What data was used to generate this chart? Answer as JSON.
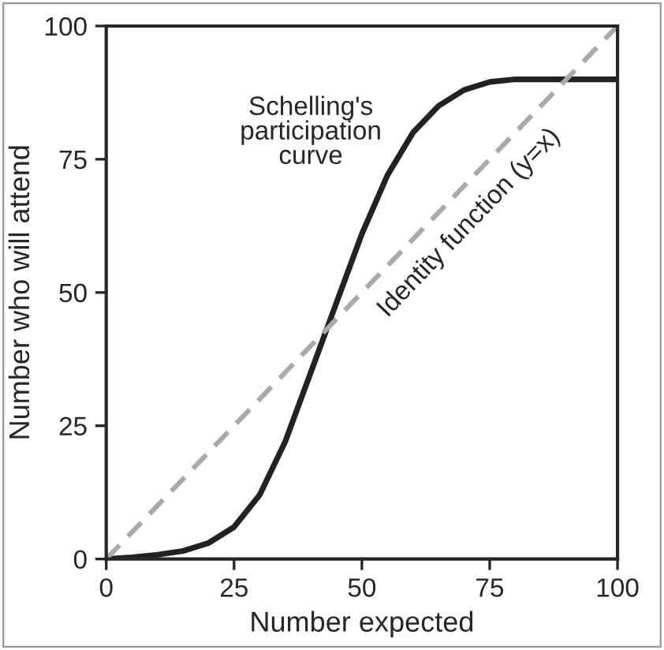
{
  "chart_data": {
    "type": "line",
    "xlabel": "Number expected",
    "ylabel": "Number who will attend",
    "xlim": [
      0,
      100
    ],
    "ylim": [
      0,
      100
    ],
    "xticks": [
      0,
      25,
      50,
      75,
      100
    ],
    "yticks": [
      0,
      25,
      50,
      75,
      100
    ],
    "grid": false,
    "legend": false,
    "marker": "none",
    "series": [
      {
        "color": "#222222",
        "line_style": "solid",
        "x": [
          0,
          5,
          10,
          15,
          20,
          25,
          30,
          35,
          40,
          45,
          50,
          55,
          60,
          65,
          70,
          75,
          80,
          85,
          90,
          95,
          100
        ],
        "values": [
          0,
          0.3,
          0.8,
          1.5,
          3,
          6,
          12,
          22,
          35,
          48,
          61,
          72,
          80,
          85,
          88,
          89.5,
          90,
          90,
          90,
          90,
          90
        ]
      },
      {
        "color": "#aaaaaa",
        "line_style": "dashed",
        "x": [
          0,
          100
        ],
        "values": [
          0,
          100
        ]
      }
    ],
    "annotations": [
      "Schelling's\nparticipation\ncurve",
      "Identity function (y=x)"
    ]
  }
}
